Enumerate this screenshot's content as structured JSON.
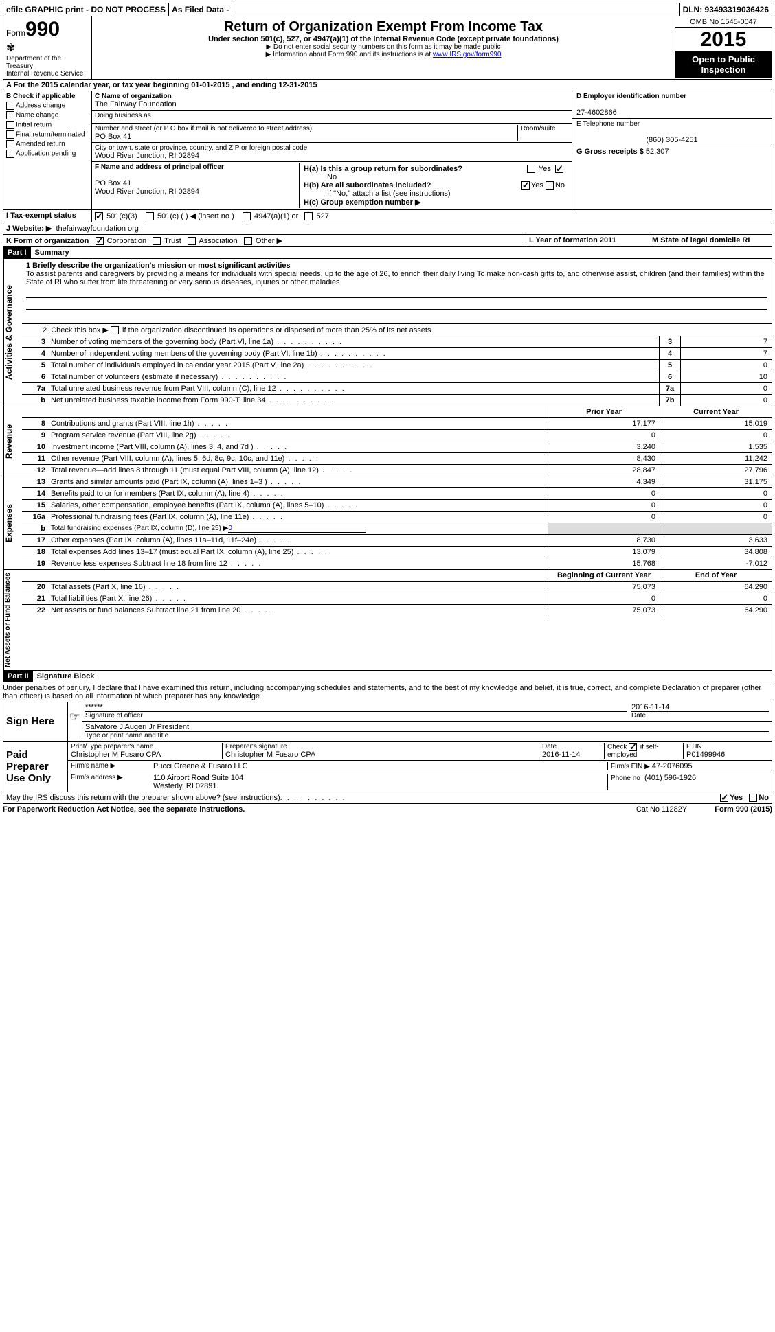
{
  "topbar": {
    "efile": "efile GRAPHIC print - DO NOT PROCESS",
    "asfiled": "As Filed Data -",
    "dln": "DLN: 93493319036426"
  },
  "header": {
    "form_label": "Form",
    "form_num": "990",
    "dept": "Department of the Treasury",
    "irs": "Internal Revenue Service",
    "title": "Return of Organization Exempt From Income Tax",
    "sub1": "Under section 501(c), 527, or 4947(a)(1) of the Internal Revenue Code (except private foundations)",
    "sub2": "Do not enter social security numbers on this form as it may be made public",
    "sub3": "Information about Form 990 and its instructions is at ",
    "sub3_link": "www IRS gov/form990",
    "omb": "OMB No 1545-0047",
    "year": "2015",
    "open": "Open to Public Inspection"
  },
  "section_a": "A  For the 2015 calendar year, or tax year beginning 01-01-2015   , and ending 12-31-2015",
  "b": {
    "title": "B Check if applicable",
    "opts": [
      "Address change",
      "Name change",
      "Initial return",
      "Final return/terminated",
      "Amended return",
      "Application pending"
    ],
    "c_label": "C Name of organization",
    "c_name": "The Fairway Foundation",
    "dba_label": "Doing business as",
    "dba": "",
    "addr_label": "Number and street (or P O  box if mail is not delivered to street address)",
    "room_label": "Room/suite",
    "addr": "PO Box 41",
    "city_label": "City or town, state or province, country, and ZIP or foreign postal code",
    "city": "Wood River Junction, RI  02894",
    "f_label": "F Name and address of principal officer",
    "f_addr1": "PO Box 41",
    "f_addr2": "Wood River Junction, RI  02894",
    "d_label": "D Employer identification number",
    "d_val": "27-4602866",
    "e_label": "E Telephone number",
    "e_val": "(860) 305-4251",
    "g_label": "G Gross receipts $",
    "g_val": "52,307",
    "ha": "H(a)  Is this a group return for subordinates?",
    "ha_no": "No",
    "hb": "H(b)  Are all subordinates included?",
    "hb_note": "If \"No,\" attach a list  (see instructions)",
    "hc": "H(c)  Group exemption number ▶",
    "yes": "Yes",
    "no": "No"
  },
  "i": {
    "label": "I  Tax-exempt status",
    "opts": [
      "501(c)(3)",
      "501(c) (  ) ◀ (insert no )",
      "4947(a)(1) or",
      "527"
    ]
  },
  "j": {
    "label": "J  Website: ▶",
    "val": "thefairwayfoundation org"
  },
  "k": {
    "label": "K Form of organization",
    "opts": [
      "Corporation",
      "Trust",
      "Association",
      "Other ▶"
    ],
    "l": "L Year of formation  2011",
    "m": "M State of legal domicile  RI"
  },
  "part1": {
    "hdr": "Part I",
    "title": "Summary",
    "mission_label": "1 Briefly describe the organization's mission or most significant activities",
    "mission": "To assist parents and caregivers by providing a means for individuals with special needs, up to the age of 26, to enrich their daily living  To make non-cash gifts to, and otherwise assist, children (and their families) within the State of RI who suffer from life threatening or very serious diseases, injuries or other maladies",
    "line2": "2  Check this box ▶        if the organization discontinued its operations or disposed of more than 25% of its net assets",
    "gov_lines": [
      {
        "n": "3",
        "t": "Number of voting members of the governing body (Part VI, line 1a)",
        "box": "3",
        "v": "7"
      },
      {
        "n": "4",
        "t": "Number of independent voting members of the governing body (Part VI, line 1b)",
        "box": "4",
        "v": "7"
      },
      {
        "n": "5",
        "t": "Total number of individuals employed in calendar year 2015 (Part V, line 2a)",
        "box": "5",
        "v": "0"
      },
      {
        "n": "6",
        "t": "Total number of volunteers (estimate if necessary)",
        "box": "6",
        "v": "10"
      },
      {
        "n": "7a",
        "t": "Total unrelated business revenue from Part VIII, column (C), line 12",
        "box": "7a",
        "v": "0"
      },
      {
        "n": "b",
        "t": "Net unrelated business taxable income from Form 990-T, line 34",
        "box": "7b",
        "v": "0"
      }
    ],
    "col_prior": "Prior Year",
    "col_curr": "Current Year",
    "revenue": [
      {
        "n": "8",
        "t": "Contributions and grants (Part VIII, line 1h)",
        "p": "17,177",
        "c": "15,019"
      },
      {
        "n": "9",
        "t": "Program service revenue (Part VIII, line 2g)",
        "p": "0",
        "c": "0"
      },
      {
        "n": "10",
        "t": "Investment income (Part VIII, column (A), lines 3, 4, and 7d )",
        "p": "3,240",
        "c": "1,535"
      },
      {
        "n": "11",
        "t": "Other revenue (Part VIII, column (A), lines 5, 6d, 8c, 9c, 10c, and 11e)",
        "p": "8,430",
        "c": "11,242"
      },
      {
        "n": "12",
        "t": "Total revenue—add lines 8 through 11 (must equal Part VIII, column (A), line 12)",
        "p": "28,847",
        "c": "27,796"
      }
    ],
    "expenses": [
      {
        "n": "13",
        "t": "Grants and similar amounts paid (Part IX, column (A), lines 1–3 )",
        "p": "4,349",
        "c": "31,175"
      },
      {
        "n": "14",
        "t": "Benefits paid to or for members (Part IX, column (A), line 4)",
        "p": "0",
        "c": "0"
      },
      {
        "n": "15",
        "t": "Salaries, other compensation, employee benefits (Part IX, column (A), lines 5–10)",
        "p": "0",
        "c": "0"
      },
      {
        "n": "16a",
        "t": "Professional fundraising fees (Part IX, column (A), line 11e)",
        "p": "0",
        "c": "0"
      },
      {
        "n": "b",
        "t": "Total fundraising expenses (Part IX, column (D), line 25) ▶",
        "p": "",
        "c": "",
        "fundraise": "0"
      },
      {
        "n": "17",
        "t": "Other expenses (Part IX, column (A), lines 11a–11d, 11f–24e)",
        "p": "8,730",
        "c": "3,633"
      },
      {
        "n": "18",
        "t": "Total expenses  Add lines 13–17 (must equal Part IX, column (A), line 25)",
        "p": "13,079",
        "c": "34,808"
      },
      {
        "n": "19",
        "t": "Revenue less expenses  Subtract line 18 from line 12",
        "p": "15,768",
        "c": "-7,012"
      }
    ],
    "col_begin": "Beginning of Current Year",
    "col_end": "End of Year",
    "net": [
      {
        "n": "20",
        "t": "Total assets (Part X, line 16)",
        "p": "75,073",
        "c": "64,290"
      },
      {
        "n": "21",
        "t": "Total liabilities (Part X, line 26)",
        "p": "0",
        "c": "0"
      },
      {
        "n": "22",
        "t": "Net assets or fund balances  Subtract line 21 from line 20",
        "p": "75,073",
        "c": "64,290"
      }
    ],
    "side_gov": "Activities & Governance",
    "side_rev": "Revenue",
    "side_exp": "Expenses",
    "side_net": "Net Assets or Fund Balances"
  },
  "part2": {
    "hdr": "Part II",
    "title": "Signature Block",
    "perjury": "Under penalties of perjury, I declare that I have examined this return, including accompanying schedules and statements, and to the best of my knowledge and belief, it is true, correct, and complete  Declaration of preparer (other than officer) is based on all information of which preparer has any knowledge",
    "sign_here": "Sign Here",
    "stars": "******",
    "sig_officer": "Signature of officer",
    "date": "Date",
    "sig_date": "2016-11-14",
    "name_title": "Salvatore J Augeri Jr President",
    "type_print": "Type or print name and title",
    "paid": "Paid Preparer Use Only",
    "prep_name_label": "Print/Type preparer's name",
    "prep_name": "Christopher M Fusaro CPA",
    "prep_sig_label": "Preparer's signature",
    "prep_sig": "Christopher M Fusaro CPA",
    "prep_date_label": "Date",
    "prep_date": "2016-11-14",
    "self_emp": "Check         if self-employed",
    "ptin_label": "PTIN",
    "ptin": "P01499946",
    "firm_name_label": "Firm's name      ▶",
    "firm_name": "Pucci Greene & Fusaro LLC",
    "firm_ein_label": "Firm's EIN ▶",
    "firm_ein": "47-2076095",
    "firm_addr_label": "Firm's address ▶",
    "firm_addr": "110 Airport Road Suite 104",
    "firm_city": "Westerly, RI  02891",
    "phone_label": "Phone no",
    "phone": "(401) 596-1926",
    "discuss": "May the IRS discuss this return with the preparer shown above? (see instructions)"
  },
  "footer": {
    "paperwork": "For Paperwork Reduction Act Notice, see the separate instructions.",
    "cat": "Cat No  11282Y",
    "form": "Form 990 (2015)"
  }
}
